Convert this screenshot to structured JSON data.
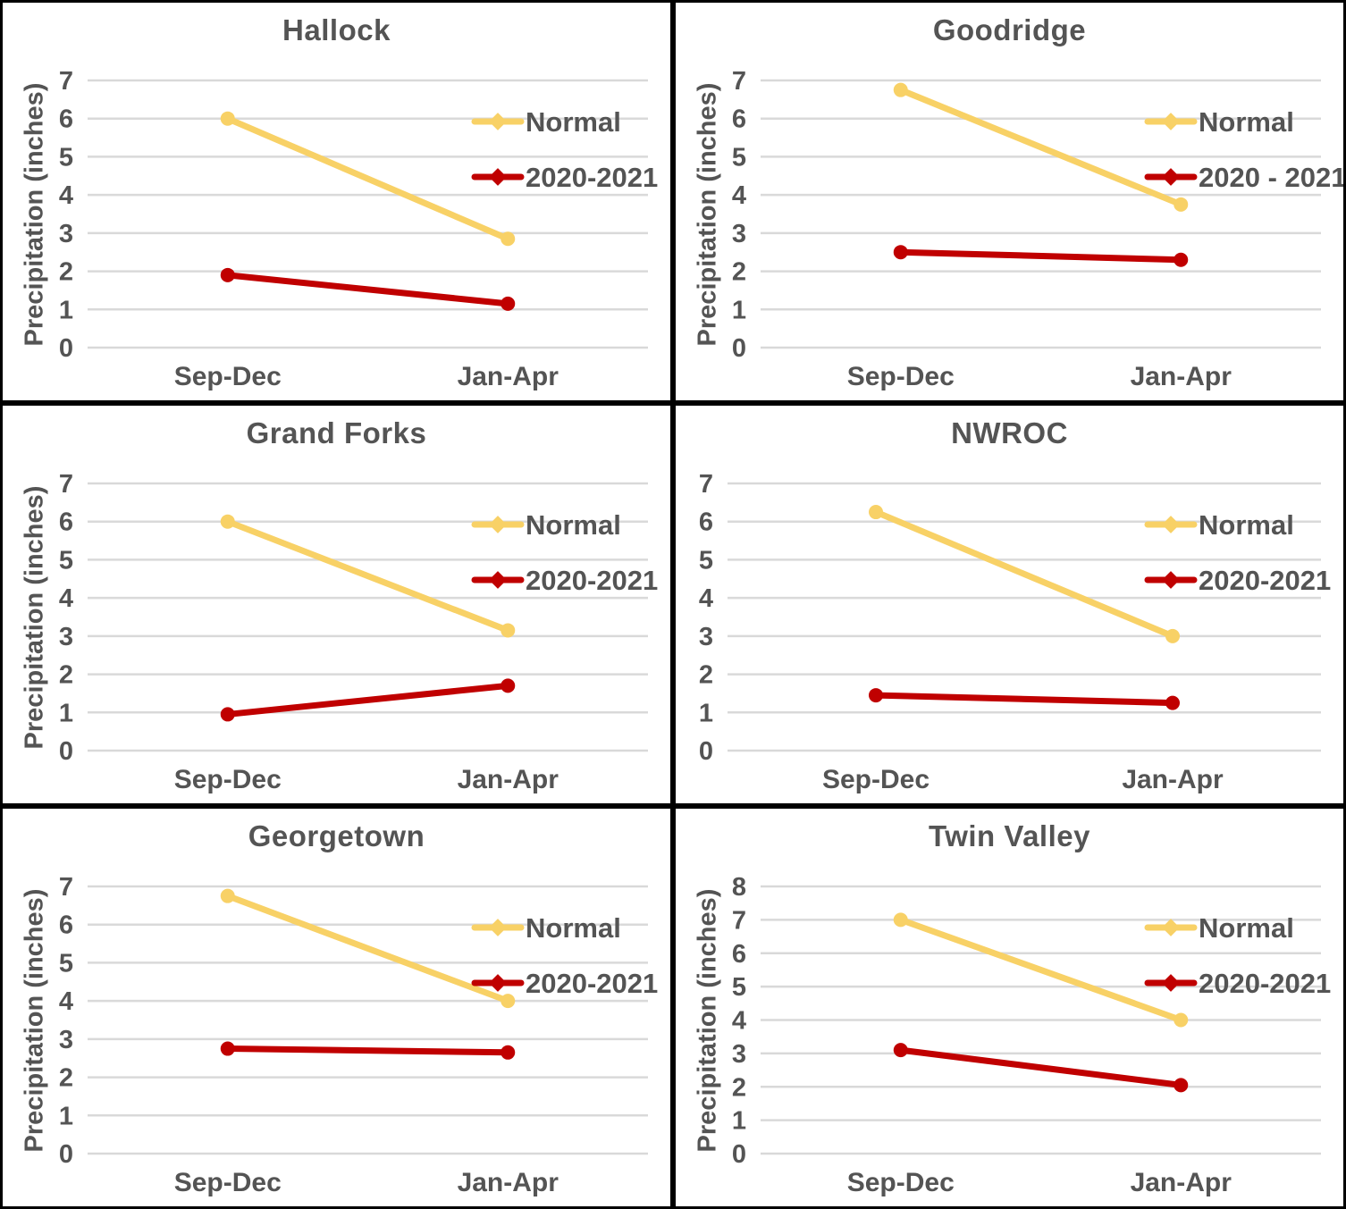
{
  "styles": {
    "text_color": "#545454",
    "grid_color": "#D9D9D9",
    "panel_border_color": "#000000",
    "background": "#FFFFFF",
    "normal_series_color": "#F8D166",
    "season_series_color": "#C00000"
  },
  "chart_data": [
    {
      "type": "line",
      "title": "Hallock",
      "ylabel": "Precipitation (inches)",
      "categories": [
        "Sep-Dec",
        "Jan-Apr"
      ],
      "ylim": [
        0,
        7
      ],
      "yticks": [
        0,
        1,
        2,
        3,
        4,
        5,
        6,
        7
      ],
      "grid": true,
      "legend_position": "upper-right",
      "series": [
        {
          "name": "Normal",
          "color": "#F8D166",
          "values": [
            6.0,
            2.85
          ]
        },
        {
          "name": "2020-2021",
          "color": "#C00000",
          "values": [
            1.9,
            1.15
          ]
        }
      ]
    },
    {
      "type": "line",
      "title": "Goodridge",
      "ylabel": "Precipitation (inches)",
      "categories": [
        "Sep-Dec",
        "Jan-Apr"
      ],
      "ylim": [
        0,
        7
      ],
      "yticks": [
        0,
        1,
        2,
        3,
        4,
        5,
        6,
        7
      ],
      "grid": true,
      "legend_position": "upper-right",
      "series": [
        {
          "name": "Normal",
          "color": "#F8D166",
          "values": [
            6.75,
            3.75
          ]
        },
        {
          "name": "2020 - 2021",
          "color": "#C00000",
          "values": [
            2.5,
            2.3
          ]
        }
      ]
    },
    {
      "type": "line",
      "title": "Grand Forks",
      "ylabel": "Precipitation (inches)",
      "categories": [
        "Sep-Dec",
        "Jan-Apr"
      ],
      "ylim": [
        0,
        7
      ],
      "yticks": [
        0,
        1,
        2,
        3,
        4,
        5,
        6,
        7
      ],
      "grid": true,
      "legend_position": "upper-right",
      "series": [
        {
          "name": "Normal",
          "color": "#F8D166",
          "values": [
            6.0,
            3.15
          ]
        },
        {
          "name": "2020-2021",
          "color": "#C00000",
          "values": [
            0.95,
            1.7
          ]
        }
      ]
    },
    {
      "type": "line",
      "title": "NWROC",
      "ylabel": null,
      "categories": [
        "Sep-Dec",
        "Jan-Apr"
      ],
      "ylim": [
        0,
        7
      ],
      "yticks": [
        0,
        1,
        2,
        3,
        4,
        5,
        6,
        7
      ],
      "grid": true,
      "legend_position": "upper-right",
      "series": [
        {
          "name": "Normal",
          "color": "#F8D166",
          "values": [
            6.25,
            3.0
          ]
        },
        {
          "name": "2020-2021",
          "color": "#C00000",
          "values": [
            1.45,
            1.25
          ]
        }
      ]
    },
    {
      "type": "line",
      "title": "Georgetown",
      "ylabel": "Precipitation (inches)",
      "categories": [
        "Sep-Dec",
        "Jan-Apr"
      ],
      "ylim": [
        0,
        7
      ],
      "yticks": [
        0,
        1,
        2,
        3,
        4,
        5,
        6,
        7
      ],
      "grid": true,
      "legend_position": "upper-right",
      "series": [
        {
          "name": "Normal",
          "color": "#F8D166",
          "values": [
            6.75,
            4.0
          ]
        },
        {
          "name": "2020-2021",
          "color": "#C00000",
          "values": [
            2.75,
            2.65
          ]
        }
      ]
    },
    {
      "type": "line",
      "title": "Twin Valley",
      "ylabel": "Precipitation (inches)",
      "categories": [
        "Sep-Dec",
        "Jan-Apr"
      ],
      "ylim": [
        0,
        8
      ],
      "yticks": [
        0,
        1,
        2,
        3,
        4,
        5,
        6,
        7,
        8
      ],
      "grid": true,
      "legend_position": "upper-right",
      "series": [
        {
          "name": "Normal",
          "color": "#F8D166",
          "values": [
            7.0,
            4.0
          ]
        },
        {
          "name": "2020-2021",
          "color": "#C00000",
          "values": [
            3.1,
            2.05
          ]
        }
      ]
    }
  ]
}
